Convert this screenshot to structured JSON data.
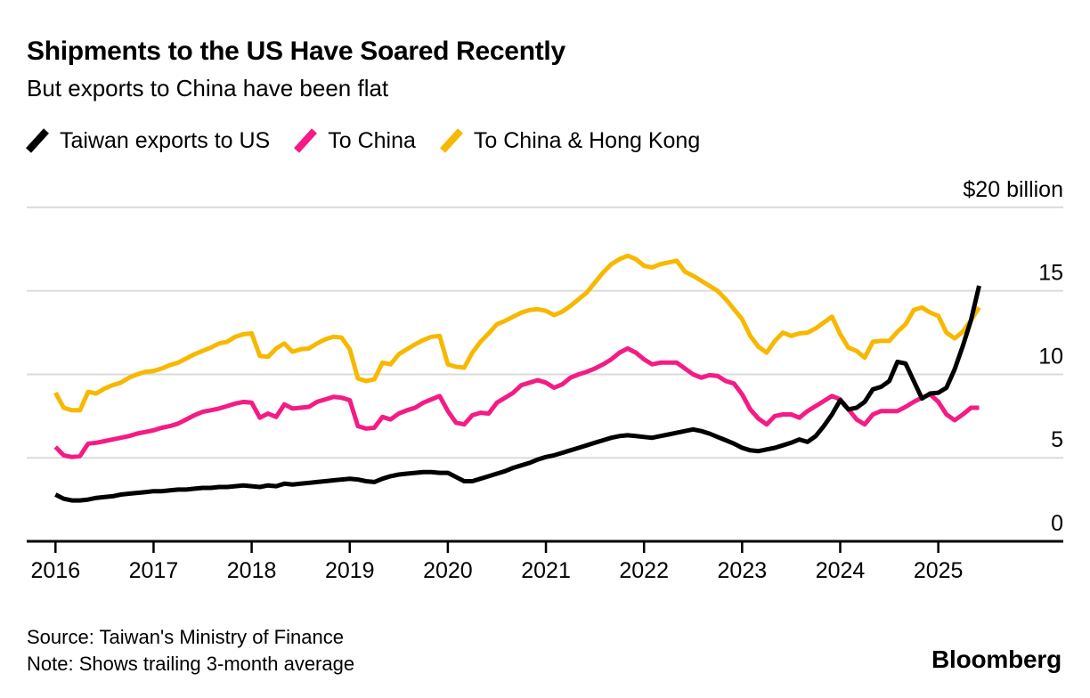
{
  "header": {
    "title": "Shipments to the US Have Soared Recently",
    "subtitle": "But exports to China have been flat"
  },
  "legend": [
    {
      "label": "Taiwan exports to US",
      "color": "#000000"
    },
    {
      "label": "To China",
      "color": "#F41C84"
    },
    {
      "label": "To China & Hong Kong",
      "color": "#F7B800"
    }
  ],
  "axes": {
    "y_unit_label": "$20 billion",
    "y_tick_labels": [
      "15",
      "10",
      "5",
      "0"
    ],
    "y_tick_values": [
      15,
      10,
      5,
      0
    ],
    "y_gridline_values": [
      20,
      15,
      10,
      5
    ],
    "x_tick_labels": [
      "2016",
      "2017",
      "2018",
      "2019",
      "2020",
      "2021",
      "2022",
      "2023",
      "2024",
      "2025"
    ]
  },
  "footer": {
    "source": "Source: Taiwan's Ministry of Finance",
    "note": "Note: Shows trailing 3-month average",
    "brand": "Bloomberg"
  },
  "colors": {
    "us_line": "#000000",
    "china_line": "#F41C84",
    "china_hk_line": "#F7B800",
    "gridline": "#DBDBDB",
    "axis": "#000000",
    "text": "#000000"
  },
  "chart_data": {
    "type": "line",
    "title": "Shipments to the US Have Soared Recently",
    "subtitle": "But exports to China have been flat",
    "x_interval": "monthly",
    "x_start": "2016-01",
    "x_end": "2025-06",
    "x_tick_years": [
      2016,
      2017,
      2018,
      2019,
      2020,
      2021,
      2022,
      2023,
      2024,
      2025
    ],
    "ylabel": "$ billion",
    "ylim": [
      0,
      20
    ],
    "grid": "horizontal",
    "legend_position": "top",
    "note": "Trailing 3-month average, USD billions",
    "series": [
      {
        "name": "Taiwan exports to US",
        "color": "#000000",
        "values": [
          2.8,
          2.55,
          2.45,
          2.45,
          2.5,
          2.6,
          2.65,
          2.7,
          2.8,
          2.85,
          2.9,
          2.95,
          3.0,
          3.0,
          3.05,
          3.1,
          3.1,
          3.15,
          3.2,
          3.2,
          3.25,
          3.25,
          3.3,
          3.35,
          3.3,
          3.25,
          3.35,
          3.3,
          3.45,
          3.4,
          3.45,
          3.5,
          3.55,
          3.6,
          3.65,
          3.7,
          3.75,
          3.7,
          3.6,
          3.55,
          3.75,
          3.9,
          4.0,
          4.05,
          4.1,
          4.15,
          4.15,
          4.1,
          4.1,
          3.85,
          3.6,
          3.6,
          3.75,
          3.9,
          4.05,
          4.2,
          4.4,
          4.55,
          4.7,
          4.9,
          5.05,
          5.15,
          5.3,
          5.45,
          5.6,
          5.75,
          5.9,
          6.05,
          6.2,
          6.3,
          6.35,
          6.3,
          6.25,
          6.2,
          6.3,
          6.4,
          6.5,
          6.6,
          6.7,
          6.6,
          6.45,
          6.25,
          6.05,
          5.85,
          5.6,
          5.45,
          5.4,
          5.5,
          5.6,
          5.75,
          5.9,
          6.1,
          5.95,
          6.3,
          6.9,
          7.6,
          8.45,
          7.9,
          8.0,
          8.35,
          9.1,
          9.25,
          9.6,
          10.75,
          10.65,
          9.6,
          8.55,
          8.85,
          8.9,
          9.2,
          10.3,
          11.7,
          13.25,
          15.3
        ]
      },
      {
        "name": "To China",
        "color": "#F41C84",
        "values": [
          5.65,
          5.15,
          5.05,
          5.1,
          5.85,
          5.9,
          6.0,
          6.1,
          6.2,
          6.3,
          6.45,
          6.55,
          6.65,
          6.8,
          6.9,
          7.05,
          7.3,
          7.55,
          7.75,
          7.85,
          7.95,
          8.1,
          8.25,
          8.35,
          8.3,
          7.4,
          7.65,
          7.45,
          8.2,
          7.95,
          8.0,
          8.05,
          8.35,
          8.5,
          8.65,
          8.6,
          8.45,
          6.9,
          6.75,
          6.8,
          7.45,
          7.3,
          7.65,
          7.85,
          8.0,
          8.3,
          8.5,
          8.7,
          7.8,
          7.1,
          7.0,
          7.55,
          7.7,
          7.65,
          8.3,
          8.6,
          8.9,
          9.35,
          9.5,
          9.65,
          9.5,
          9.2,
          9.4,
          9.8,
          10.0,
          10.15,
          10.35,
          10.6,
          10.9,
          11.3,
          11.55,
          11.3,
          10.9,
          10.6,
          10.7,
          10.7,
          10.7,
          10.35,
          10.0,
          9.8,
          9.95,
          9.9,
          9.6,
          9.45,
          8.8,
          7.9,
          7.35,
          7.0,
          7.5,
          7.6,
          7.6,
          7.4,
          7.8,
          8.1,
          8.4,
          8.7,
          8.5,
          7.9,
          7.3,
          7.0,
          7.6,
          7.8,
          7.8,
          7.8,
          8.05,
          8.35,
          8.6,
          8.8,
          8.35,
          7.6,
          7.25,
          7.6,
          8.0,
          8.0
        ]
      },
      {
        "name": "To China & Hong Kong",
        "color": "#F7B800",
        "values": [
          8.9,
          8.0,
          7.85,
          7.85,
          8.95,
          8.85,
          9.15,
          9.35,
          9.5,
          9.8,
          10.0,
          10.15,
          10.2,
          10.35,
          10.55,
          10.7,
          10.95,
          11.2,
          11.4,
          11.6,
          11.85,
          11.95,
          12.25,
          12.4,
          12.45,
          11.1,
          11.05,
          11.55,
          11.85,
          11.35,
          11.5,
          11.55,
          11.85,
          12.1,
          12.25,
          12.2,
          11.5,
          9.75,
          9.6,
          9.7,
          10.7,
          10.6,
          11.2,
          11.5,
          11.8,
          12.05,
          12.25,
          12.3,
          10.6,
          10.45,
          10.4,
          11.3,
          11.95,
          12.45,
          13.0,
          13.2,
          13.45,
          13.7,
          13.85,
          13.9,
          13.8,
          13.55,
          13.75,
          14.1,
          14.5,
          14.9,
          15.5,
          16.1,
          16.6,
          16.9,
          17.1,
          16.9,
          16.5,
          16.4,
          16.6,
          16.7,
          16.8,
          16.15,
          15.9,
          15.6,
          15.3,
          15.0,
          14.5,
          13.9,
          13.3,
          12.3,
          11.65,
          11.3,
          12.0,
          12.5,
          12.3,
          12.45,
          12.5,
          12.75,
          13.1,
          13.45,
          12.4,
          11.6,
          11.4,
          11.0,
          11.95,
          12.0,
          12.0,
          12.55,
          13.0,
          13.85,
          14.0,
          13.7,
          13.5,
          12.5,
          12.15,
          12.55,
          13.25,
          14.0
        ]
      }
    ]
  }
}
